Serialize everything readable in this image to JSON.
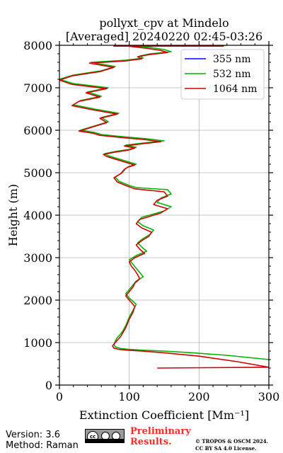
{
  "chart_data": {
    "type": "line",
    "title": "pollyxt_cpv at Mindelo",
    "subtitle": "[Averaged] 20240220 02:45-03:26",
    "xlabel": "Extinction Coefficient [Mm⁻¹]",
    "ylabel": "Height (m)",
    "xlim": [
      0,
      300
    ],
    "ylim": [
      0,
      8000
    ],
    "x_ticks": [
      0,
      100,
      200,
      300
    ],
    "y_ticks": [
      0,
      1000,
      2000,
      3000,
      4000,
      5000,
      6000,
      7000,
      8000
    ],
    "grid": true,
    "legend_position": "top-right",
    "series": [
      {
        "name": "355 nm",
        "color": "#0000ff",
        "x": [],
        "y": []
      },
      {
        "name": "532 nm",
        "color": "#00b400",
        "x": [
          300,
          240,
          190,
          150,
          120,
          100,
          88,
          80,
          78,
          82,
          90,
          95,
          100,
          105,
          110,
          100,
          95,
          100,
          105,
          110,
          120,
          115,
          110,
          105,
          100,
          110,
          125,
          118,
          112,
          120,
          130,
          135,
          120,
          112,
          118,
          150,
          160,
          140,
          145,
          160,
          155,
          110,
          100,
          85,
          80,
          90,
          95,
          100,
          110,
          100,
          90,
          80,
          70,
          65,
          80,
          100,
          110,
          95,
          120,
          150,
          125,
          90,
          60,
          50,
          30,
          50,
          70,
          60,
          85,
          50,
          20,
          30,
          60,
          40,
          70,
          20,
          0,
          20,
          60,
          80,
          45,
          95,
          120,
          115,
          130,
          160,
          150,
          130,
          100,
          200,
          240,
          80,
          210,
          215
        ],
        "y": [
          600,
          700,
          760,
          800,
          820,
          840,
          860,
          900,
          960,
          1100,
          1250,
          1400,
          1600,
          1750,
          1900,
          2050,
          2150,
          2250,
          2350,
          2450,
          2550,
          2650,
          2750,
          2850,
          2950,
          3050,
          3150,
          3250,
          3350,
          3450,
          3550,
          3650,
          3750,
          3850,
          3950,
          4100,
          4200,
          4300,
          4400,
          4500,
          4600,
          4650,
          4700,
          4800,
          4900,
          5000,
          5100,
          5150,
          5200,
          5250,
          5300,
          5350,
          5400,
          5450,
          5500,
          5550,
          5600,
          5650,
          5700,
          5750,
          5800,
          5850,
          5900,
          5950,
          6000,
          6100,
          6200,
          6300,
          6400,
          6500,
          6600,
          6700,
          6800,
          6900,
          7000,
          7100,
          7200,
          7300,
          7400,
          7500,
          7600,
          7650,
          7700,
          7750,
          7800,
          7850,
          7900,
          7950,
          8000,
          8000,
          8000,
          8000,
          8000,
          8000
        ]
      },
      {
        "name": "1064 nm",
        "color": "#d00000",
        "x": [
          140,
          300,
          255,
          200,
          150,
          118,
          98,
          85,
          78,
          76,
          80,
          88,
          95,
          100,
          105,
          108,
          100,
          95,
          100,
          105,
          108,
          115,
          112,
          108,
          103,
          100,
          108,
          122,
          115,
          110,
          118,
          128,
          132,
          118,
          110,
          115,
          145,
          155,
          135,
          140,
          155,
          150,
          108,
          98,
          83,
          78,
          88,
          93,
          98,
          108,
          98,
          88,
          78,
          68,
          63,
          78,
          98,
          108,
          93,
          118,
          145,
          122,
          88,
          58,
          48,
          28,
          48,
          68,
          58,
          83,
          48,
          18,
          28,
          58,
          38,
          68,
          18,
          0,
          18,
          58,
          78,
          43,
          93,
          118,
          112,
          128,
          155,
          145,
          125,
          98,
          195,
          235,
          78,
          205,
          210
        ],
        "y": [
          400,
          420,
          550,
          680,
          760,
          800,
          820,
          840,
          870,
          920,
          1000,
          1150,
          1350,
          1550,
          1700,
          1850,
          2000,
          2100,
          2200,
          2300,
          2400,
          2500,
          2600,
          2700,
          2800,
          2900,
          3000,
          3100,
          3200,
          3300,
          3400,
          3500,
          3600,
          3700,
          3800,
          3900,
          4050,
          4150,
          4250,
          4350,
          4450,
          4550,
          4620,
          4680,
          4780,
          4880,
          4980,
          5080,
          5130,
          5180,
          5230,
          5280,
          5330,
          5380,
          5430,
          5480,
          5530,
          5580,
          5630,
          5680,
          5730,
          5780,
          5830,
          5880,
          5930,
          5980,
          6080,
          6180,
          6280,
          6380,
          6480,
          6580,
          6680,
          6780,
          6880,
          6980,
          7080,
          7180,
          7280,
          7380,
          7480,
          7580,
          7630,
          7680,
          7730,
          7780,
          7830,
          7880,
          7930,
          7980,
          7980,
          7980,
          7980,
          7980,
          7980
        ]
      }
    ]
  },
  "footer": {
    "version": "Version: 3.6",
    "method": "Method: Raman",
    "preliminary_line1": "Preliminary",
    "preliminary_line2": "Results.",
    "copyright_line1": "© TROPOS & OSCM 2024.",
    "copyright_line2": "CC BY SA 4.0 License.",
    "license_badge": "cc-by-sa-icon"
  }
}
